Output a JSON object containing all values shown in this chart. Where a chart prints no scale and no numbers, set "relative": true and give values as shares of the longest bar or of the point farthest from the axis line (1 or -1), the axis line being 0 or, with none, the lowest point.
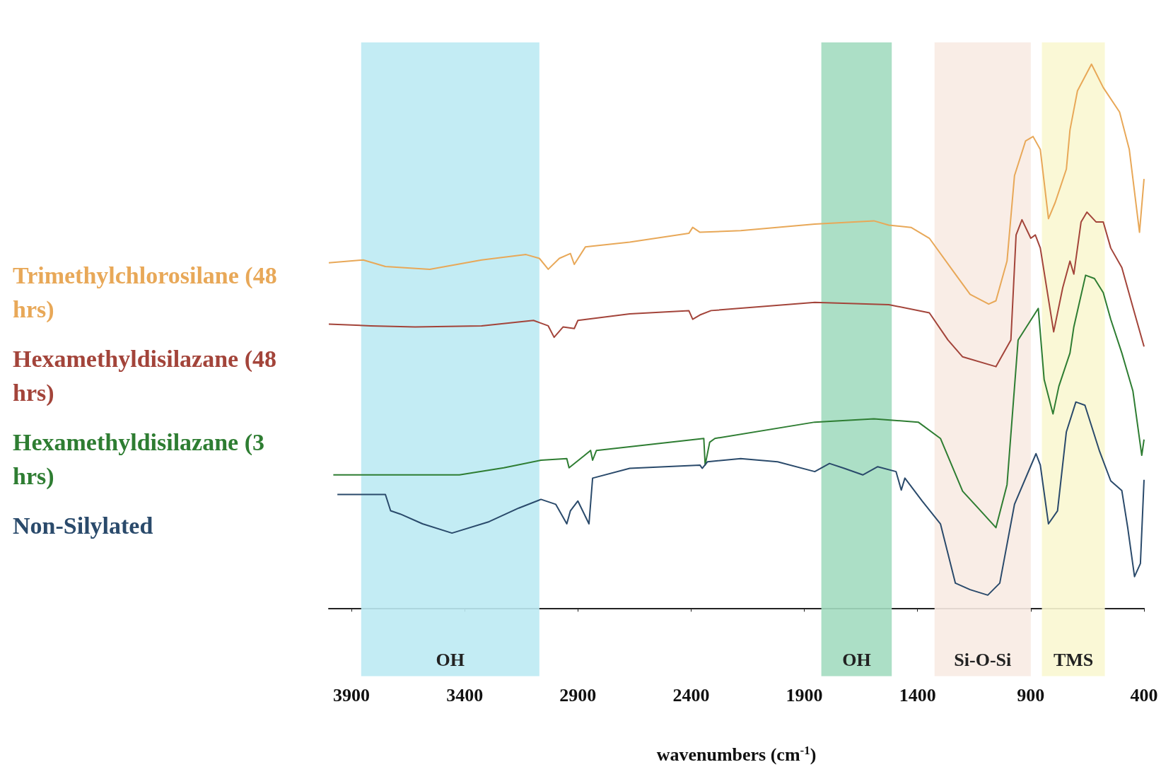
{
  "chart_data": {
    "type": "line",
    "relative": true,
    "xlabel": "wavenumbers (cm$^{-1}$)",
    "xlim": [
      4000,
      400
    ],
    "xticks": [
      3900,
      3400,
      2900,
      2400,
      1900,
      1400,
      900,
      400
    ],
    "legend": "left",
    "tick_labels": "x",
    "bands": [
      {
        "axis": "x",
        "from": 3857,
        "to": 3070,
        "label": "OH",
        "color": "#bdeaf3"
      },
      {
        "axis": "x",
        "from": 1825,
        "to": 1514,
        "label": "OH",
        "color": "#a3dcc0"
      },
      {
        "axis": "x",
        "from": 1325,
        "to": 900,
        "label": "Si-O-Si",
        "color": "#f8ebe3"
      },
      {
        "axis": "x",
        "from": 851,
        "to": 573,
        "label": "TMS",
        "color": "#f9f7d2"
      }
    ],
    "series": [
      {
        "name": "Trimethylchlorosilane (48 hrs)",
        "color": "#e8a858",
        "x": [
          4000,
          3848,
          3750,
          3554,
          3325,
          3129,
          3070,
          3031,
          2982,
          2933,
          2916,
          2867,
          2671,
          2410,
          2393,
          2361,
          2181,
          1854,
          1593,
          1527,
          1429,
          1348,
          1233,
          1168,
          1086,
          1054,
          1005,
          972,
          923,
          890,
          858,
          822,
          792,
          743,
          727,
          694,
          632,
          580,
          508,
          465,
          420,
          400
        ],
        "values": [
          0.635,
          0.64,
          0.628,
          0.623,
          0.64,
          0.65,
          0.643,
          0.623,
          0.643,
          0.652,
          0.632,
          0.664,
          0.673,
          0.689,
          0.7,
          0.691,
          0.694,
          0.706,
          0.712,
          0.704,
          0.7,
          0.68,
          0.614,
          0.577,
          0.559,
          0.565,
          0.638,
          0.795,
          0.859,
          0.867,
          0.843,
          0.716,
          0.746,
          0.807,
          0.879,
          0.951,
          1,
          0.957,
          0.912,
          0.843,
          0.691,
          0.789
        ]
      },
      {
        "name": "Hexamethyldisilazane (48 hrs)",
        "color": "#a3443a",
        "x": [
          4000,
          3815,
          3619,
          3325,
          3096,
          3031,
          3005,
          2965,
          2916,
          2900,
          2671,
          2410,
          2393,
          2361,
          2312,
          1854,
          1527,
          1348,
          1266,
          1201,
          1054,
          988,
          965,
          939,
          900,
          880,
          858,
          799,
          759,
          727,
          710,
          678,
          652,
          612,
          580,
          547,
          498,
          449,
          400
        ],
        "values": [
          0.522,
          0.519,
          0.517,
          0.519,
          0.529,
          0.519,
          0.498,
          0.517,
          0.514,
          0.529,
          0.541,
          0.547,
          0.531,
          0.539,
          0.547,
          0.562,
          0.558,
          0.543,
          0.493,
          0.462,
          0.444,
          0.493,
          0.686,
          0.714,
          0.68,
          0.686,
          0.662,
          0.508,
          0.589,
          0.638,
          0.614,
          0.71,
          0.728,
          0.71,
          0.71,
          0.662,
          0.626,
          0.553,
          0.481
        ]
      },
      {
        "name": "Hexamethyldisilazane (3 hrs)",
        "color": "#2e7d32",
        "x": [
          3980,
          3815,
          3619,
          3423,
          3227,
          3063,
          2949,
          2939,
          2867,
          2844,
          2835,
          2818,
          2344,
          2338,
          2318,
          2295,
          1854,
          1593,
          1397,
          1299,
          1201,
          1135,
          1054,
          1005,
          956,
          867,
          841,
          802,
          776,
          727,
          710,
          658,
          619,
          580,
          547,
          498,
          449,
          410,
          400
        ],
        "values": [
          0.245,
          0.245,
          0.245,
          0.245,
          0.258,
          0.272,
          0.275,
          0.258,
          0.282,
          0.29,
          0.272,
          0.29,
          0.312,
          0.263,
          0.305,
          0.312,
          0.342,
          0.348,
          0.342,
          0.312,
          0.215,
          0.185,
          0.148,
          0.227,
          0.493,
          0.551,
          0.42,
          0.357,
          0.408,
          0.469,
          0.517,
          0.612,
          0.606,
          0.58,
          0.531,
          0.469,
          0.399,
          0.281,
          0.31
        ]
      },
      {
        "name": "Non-Silylated",
        "color": "#2a4a6b",
        "x": [
          3962,
          3750,
          3727,
          3684,
          3586,
          3456,
          3292,
          3161,
          3063,
          2998,
          2949,
          2933,
          2900,
          2851,
          2835,
          2671,
          2361,
          2351,
          2328,
          2181,
          2018,
          1854,
          1789,
          1724,
          1642,
          1576,
          1495,
          1472,
          1456,
          1380,
          1299,
          1233,
          1168,
          1090,
          1037,
          972,
          877,
          858,
          822,
          782,
          743,
          701,
          661,
          596,
          547,
          498,
          472,
          442,
          416,
          400
        ],
        "values": [
          0.209,
          0.209,
          0.179,
          0.173,
          0.155,
          0.138,
          0.159,
          0.184,
          0.2,
          0.191,
          0.155,
          0.179,
          0.197,
          0.155,
          0.239,
          0.257,
          0.263,
          0.257,
          0.269,
          0.275,
          0.269,
          0.251,
          0.266,
          0.257,
          0.245,
          0.26,
          0.251,
          0.217,
          0.239,
          0.197,
          0.155,
          0.046,
          0.034,
          0.024,
          0.046,
          0.191,
          0.284,
          0.263,
          0.155,
          0.179,
          0.324,
          0.379,
          0.373,
          0.288,
          0.234,
          0.216,
          0.148,
          0.058,
          0.082,
          0.236
        ]
      }
    ]
  }
}
